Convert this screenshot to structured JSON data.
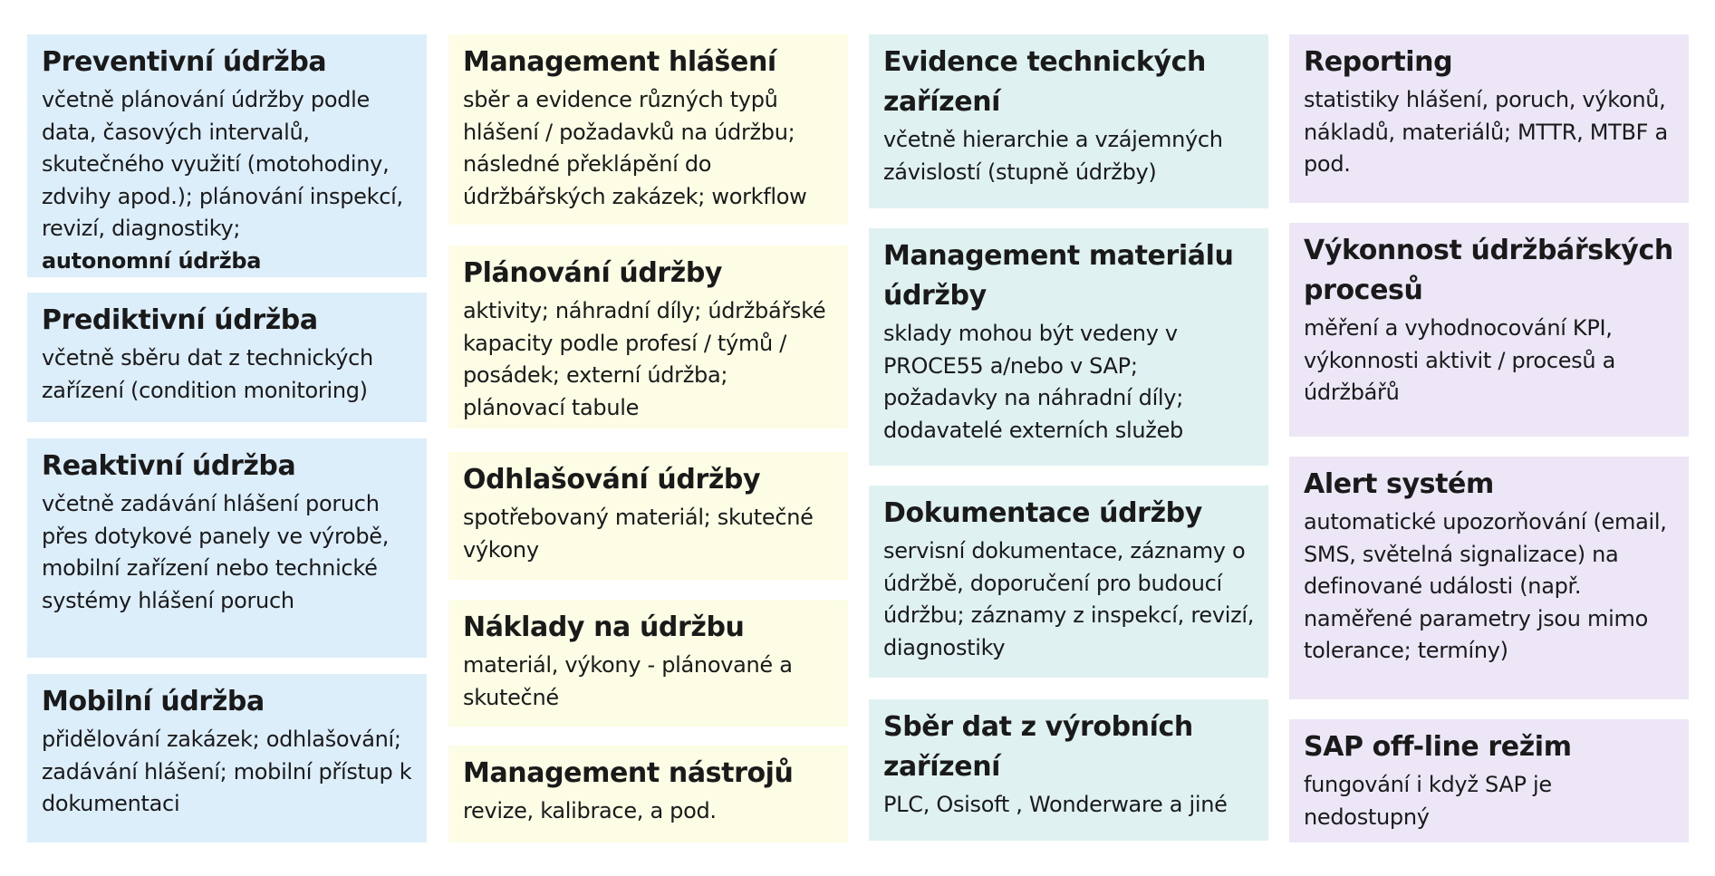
{
  "columns": [
    {
      "color": "#ddeefb",
      "cards": [
        {
          "title": "Preventivní údržba",
          "text": "včetně plánování údržby podle data, časových intervalů, skutečného využití (motohodiny, zdvihy apod.); plánování inspekcí, revizí, diagnostiky;",
          "strong": "autonomní údržba"
        },
        {
          "title": "Prediktivní údržba",
          "text": "včetně sběru dat z technických zařízení (condition monitoring)"
        },
        {
          "title": "Reaktivní údržba",
          "text": "včetně zadávání hlášení poruch přes dotykové panely ve výrobě, mobilní zařízení nebo technické systémy hlášení poruch"
        },
        {
          "title": "Mobilní údržba",
          "text": "přidělování zakázek; odhlašování; zadávání hlášení; mobilní přístup k dokumentaci"
        }
      ]
    },
    {
      "color": "#fdfde6",
      "cards": [
        {
          "title": "Management hlášení",
          "text": "sběr a evidence různých typů hlášení / požadavků na údržbu; následné překlápění do údržbářských zakázek; workflow"
        },
        {
          "title": "Plánování údržby",
          "text": "aktivity; náhradní díly; údržbářské kapacity podle profesí / týmů / posádek; externí údržba; plánovací tabule"
        },
        {
          "title": "Odhlašování údržby",
          "text": "spotřebovaný materiál; skutečné výkony"
        },
        {
          "title": "Náklady na údržbu",
          "text": "materiál, výkony - plánované a skutečné"
        },
        {
          "title": "Management nástrojů",
          "text": "revize, kalibrace, a pod."
        }
      ]
    },
    {
      "color": "#dff1f0",
      "cards": [
        {
          "title": "Evidence technických zařízení",
          "text": "včetně hierarchie a vzájemných závislostí (stupně údržby)"
        },
        {
          "title": "Management materiálu údržby",
          "text": "sklady mohou být vedeny v PROCE55 a/nebo v SAP; požadavky na náhradní díly; dodavatelé externích služeb"
        },
        {
          "title": "Dokumentace údržby",
          "text": "servisní dokumentace, záznamy o údržbě, doporučení pro budoucí údržbu; záznamy z inspekcí, revizí, diagnostiky"
        },
        {
          "title": "Sběr dat z výrobních zařízení",
          "text": "PLC, Osisoft , Wonderware a jiné"
        }
      ]
    },
    {
      "color": "#ece6f6",
      "cards": [
        {
          "title": "Reporting",
          "text": "statistiky hlášení, poruch, výkonů, nákladů, materiálů; MTTR, MTBF a pod."
        },
        {
          "title": "Výkonnost údržbářských procesů",
          "text": "měření a vyhodnocování KPI, výkonnosti aktivit / procesů a údržbářů"
        },
        {
          "title": "Alert systém",
          "text": "automatické upozorňování (email, SMS, světelná signalizace) na definované události (např. naměřené parametry jsou mimo tolerance; termíny)"
        },
        {
          "title": "SAP off-line režim",
          "text": "fungování i když SAP je nedostupný"
        }
      ]
    }
  ]
}
